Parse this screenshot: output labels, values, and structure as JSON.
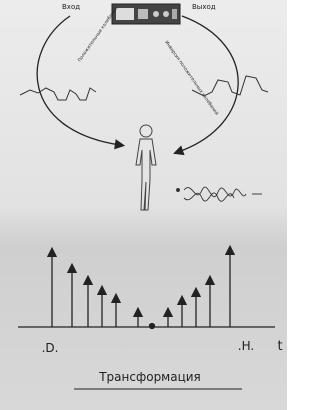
{
  "labels": {
    "input": "Вход",
    "output": "Выход",
    "left_arc": "Положительные колебания",
    "right_arc": "Инверсия положительных колебаний",
    "start": ".D.",
    "end": ".H.",
    "axis": "t",
    "caption": "Трансформация"
  }
}
